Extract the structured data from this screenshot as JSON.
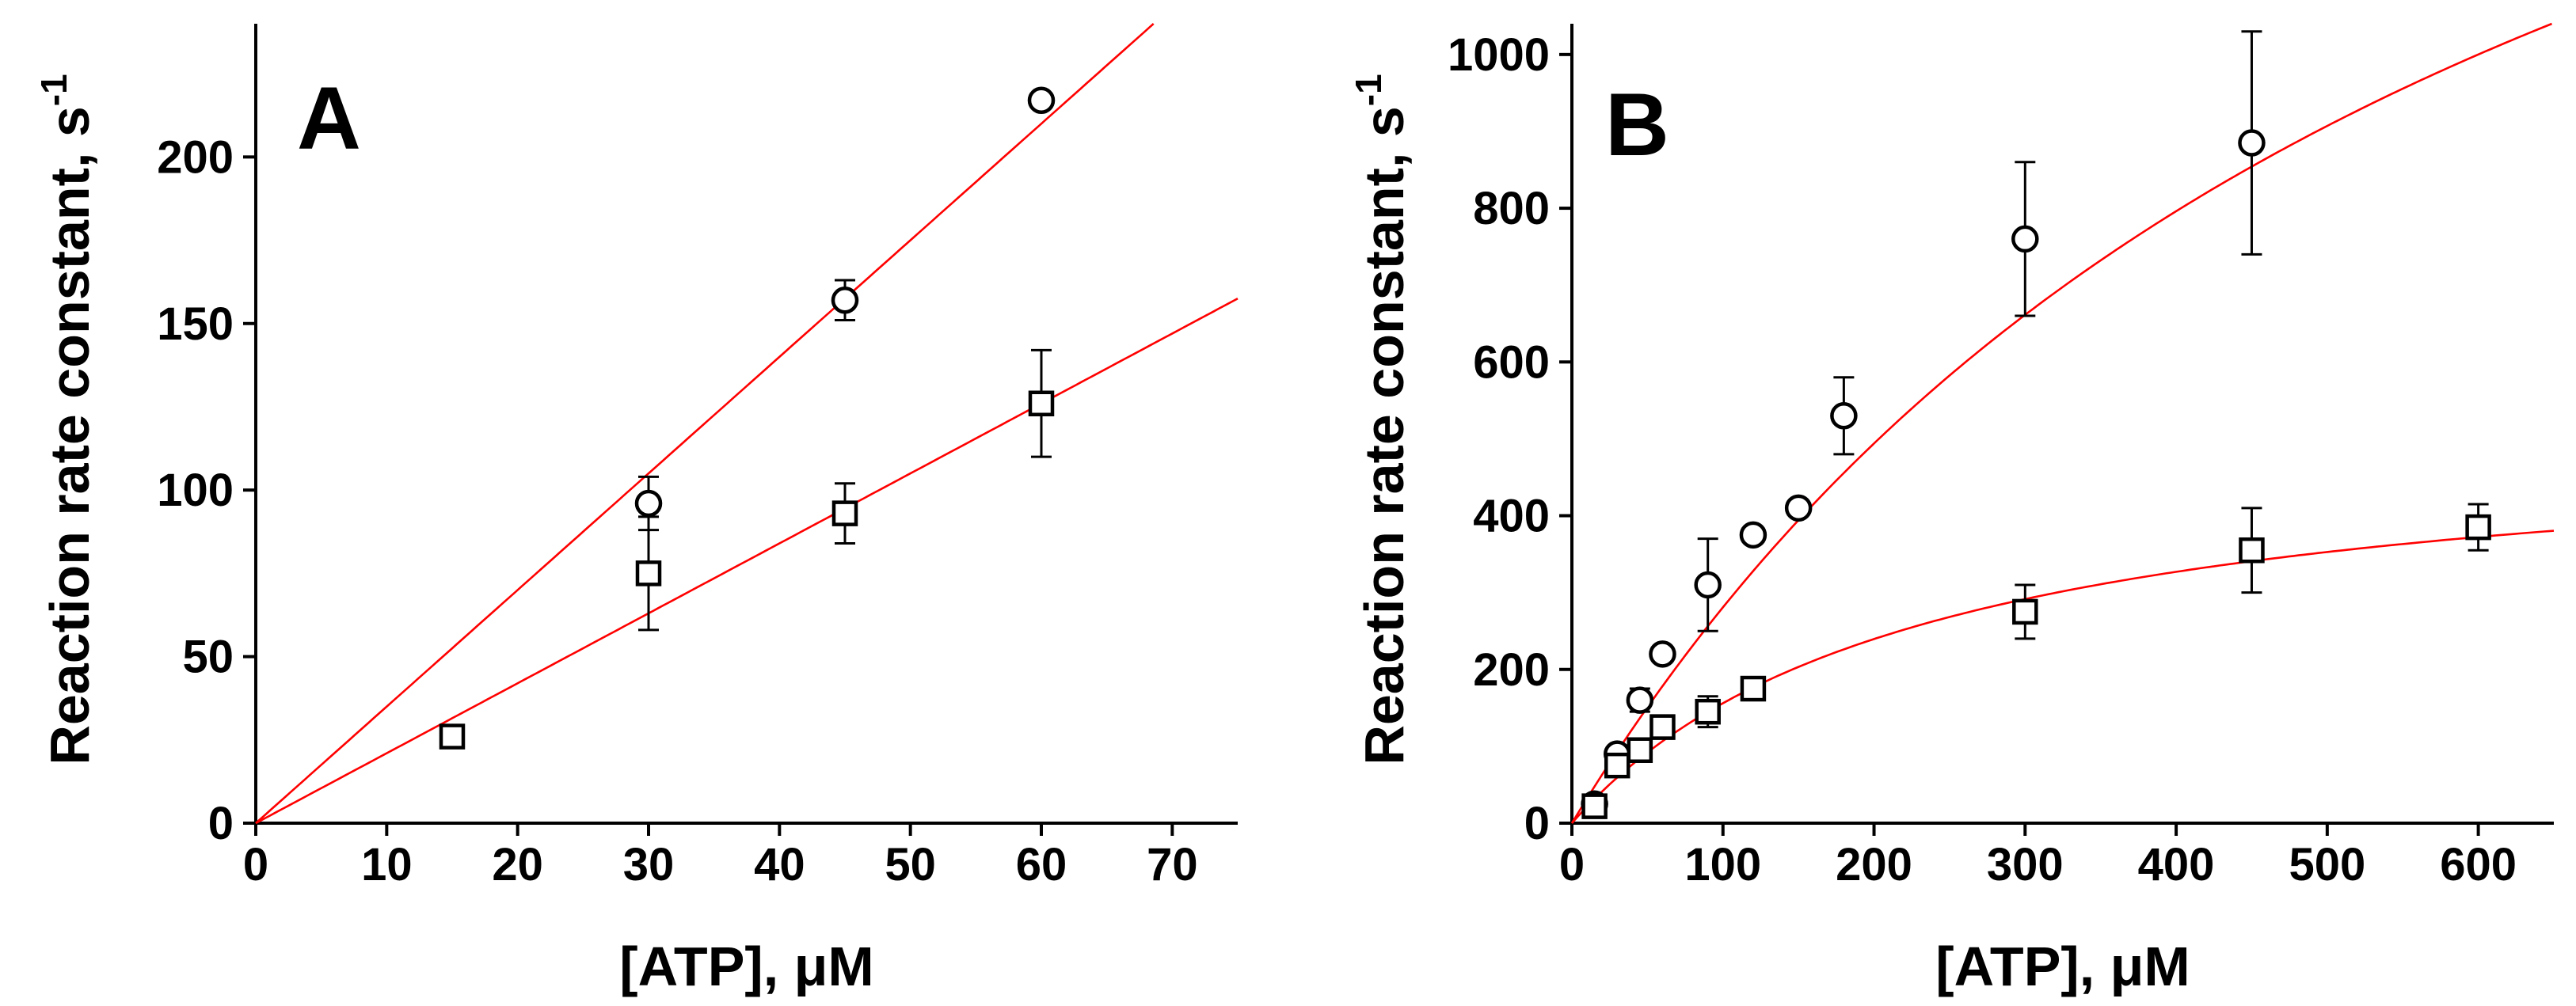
{
  "chart_data": [
    {
      "panel_label": "A",
      "type": "scatter",
      "xlabel": "[ATP], μM",
      "ylabel": "Reaction rate constant, s",
      "ylabel_superscript": "-1",
      "xlim": [
        0,
        75
      ],
      "ylim": [
        0,
        240
      ],
      "xticks": [
        0,
        10,
        20,
        30,
        40,
        50,
        60,
        70
      ],
      "yticks": [
        0,
        50,
        100,
        150,
        200
      ],
      "series": [
        {
          "name": "circles",
          "marker": "circle",
          "x": [
            30,
            45,
            60
          ],
          "y": [
            96,
            157,
            217
          ],
          "err": [
            8,
            6,
            2
          ]
        },
        {
          "name": "squares",
          "marker": "square",
          "x": [
            15,
            30,
            45,
            60
          ],
          "y": [
            26,
            75,
            93,
            126
          ],
          "err": [
            3,
            17,
            9,
            16
          ]
        }
      ],
      "fits": [
        {
          "name": "circles-fit",
          "model": "linear",
          "slope": 3.5
        },
        {
          "name": "squares-fit",
          "model": "linear",
          "slope": 2.1
        }
      ],
      "fit_color": "#ff0000"
    },
    {
      "panel_label": "B",
      "type": "scatter",
      "xlabel": "[ATP], μM",
      "ylabel": "Reaction rate constant, s",
      "ylabel_superscript": "-1",
      "xlim": [
        0,
        650
      ],
      "ylim": [
        0,
        1040
      ],
      "xticks": [
        0,
        100,
        200,
        300,
        400,
        500,
        600
      ],
      "yticks": [
        0,
        200,
        400,
        600,
        800,
        1000
      ],
      "series": [
        {
          "name": "circles",
          "marker": "circle",
          "x": [
            15,
            30,
            45,
            60,
            90,
            120,
            150,
            180,
            300,
            450
          ],
          "y": [
            25,
            90,
            160,
            220,
            310,
            375,
            410,
            530,
            760,
            885
          ],
          "err": [
            5,
            8,
            15,
            10,
            60,
            5,
            5,
            50,
            100,
            145
          ]
        },
        {
          "name": "squares",
          "marker": "square",
          "x": [
            15,
            30,
            45,
            60,
            90,
            120,
            300,
            450,
            600
          ],
          "y": [
            22,
            75,
            95,
            125,
            145,
            175,
            275,
            355,
            385
          ],
          "err": [
            5,
            5,
            10,
            15,
            20,
            10,
            35,
            55,
            30
          ]
        }
      ],
      "fits": [
        {
          "name": "circles-fit",
          "model": "hyperbolic",
          "vmax": 2050,
          "km": 630
        },
        {
          "name": "squares-fit",
          "model": "hyperbolic",
          "vmax": 515,
          "km": 230
        }
      ],
      "fit_color": "#ff0000"
    }
  ]
}
